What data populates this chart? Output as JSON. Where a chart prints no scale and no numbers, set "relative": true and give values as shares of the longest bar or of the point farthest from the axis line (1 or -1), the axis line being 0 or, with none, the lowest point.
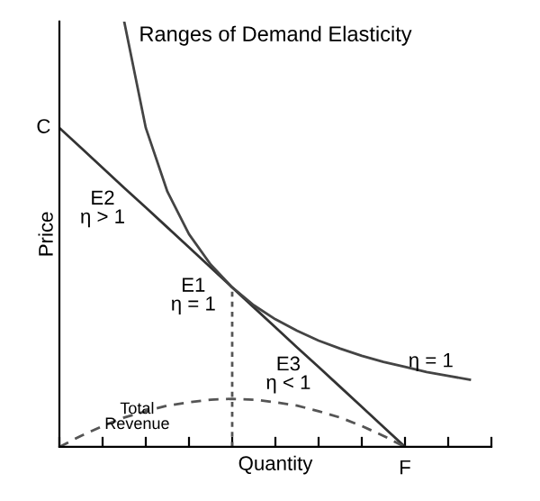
{
  "chart_data": {
    "type": "line",
    "title": "Ranges of Demand Elasticity",
    "xlabel": "Quantity",
    "ylabel": "Price",
    "relative": true,
    "categories": [
      null,
      null,
      null,
      null,
      null,
      null,
      null,
      null,
      null,
      null,
      null,
      null,
      null,
      null,
      null,
      null,
      null,
      null,
      null,
      null,
      null
    ],
    "series": [
      {
        "color": "#333333",
        "line_style": "solid",
        "values": [
          0.75,
          0.703,
          0.656,
          0.609,
          0.563,
          0.516,
          0.469,
          0.422,
          0.375,
          0.328,
          0.281,
          0.234,
          0.188,
          0.141,
          0.094,
          0.047,
          0,
          null,
          null,
          null,
          null
        ]
      },
      {
        "color": "#444444",
        "line_style": "solid",
        "values": [
          null,
          null,
          null,
          1.0,
          0.75,
          0.6,
          0.5,
          0.429,
          0.375,
          0.333,
          0.3,
          0.273,
          0.25,
          0.231,
          0.214,
          0.2,
          0.188,
          0.176,
          0.167,
          0.158,
          null
        ]
      },
      {
        "color": "#555555",
        "line_style": "dashed",
        "values": [
          0,
          0.026,
          0.049,
          0.069,
          0.084,
          0.097,
          0.105,
          0.111,
          0.113,
          0.111,
          0.105,
          0.097,
          0.084,
          0.069,
          0.049,
          0.026,
          0,
          null,
          null,
          null,
          null
        ]
      }
    ],
    "annotations": [
      "C",
      "F",
      "E2\nη > 1",
      "E1\nη = 1",
      "E3\nη < 1",
      "η = 1",
      "Total\nRevenue"
    ]
  }
}
